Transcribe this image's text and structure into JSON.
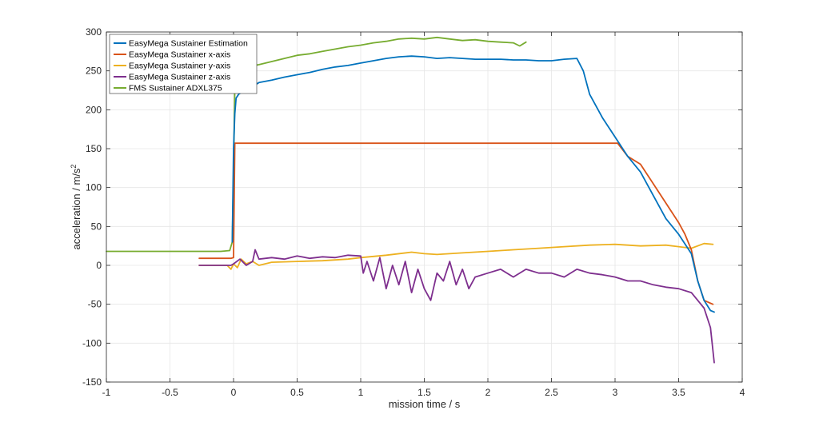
{
  "chart_data": {
    "type": "line",
    "xlabel": "mission time / s",
    "ylabel": "acceleration / m/s",
    "ylabel_sup": "2",
    "xlim": [
      -1,
      4
    ],
    "ylim": [
      -150,
      300
    ],
    "xticks": [
      "-1",
      "-0.5",
      "0",
      "0.5",
      "1",
      "1.5",
      "2",
      "2.5",
      "3",
      "3.5",
      "4"
    ],
    "yticks": [
      "300",
      "250",
      "200",
      "150",
      "100",
      "50",
      "0",
      "-50",
      "-100",
      "-150"
    ],
    "grid": true,
    "legend_position": "top-left",
    "series": [
      {
        "name": "EasyMega Sustainer Estimation",
        "color": "#0072BD",
        "x": [
          -0.01,
          0.0,
          0.01,
          0.02,
          0.04,
          0.06,
          0.1,
          0.15,
          0.2,
          0.3,
          0.4,
          0.5,
          0.6,
          0.7,
          0.8,
          0.9,
          1.0,
          1.1,
          1.2,
          1.3,
          1.4,
          1.5,
          1.6,
          1.7,
          1.8,
          1.9,
          2.0,
          2.1,
          2.2,
          2.3,
          2.4,
          2.5,
          2.6,
          2.7,
          2.75,
          2.8,
          2.9,
          3.0,
          3.1,
          3.2,
          3.3,
          3.4,
          3.5,
          3.6,
          3.65,
          3.7,
          3.75,
          3.78
        ],
        "y": [
          30,
          150,
          195,
          215,
          220,
          222,
          225,
          230,
          235,
          238,
          242,
          245,
          248,
          252,
          255,
          257,
          260,
          263,
          266,
          268,
          269,
          268,
          266,
          267,
          266,
          265,
          265,
          265,
          264,
          264,
          263,
          263,
          265,
          266,
          250,
          220,
          190,
          165,
          140,
          120,
          90,
          60,
          40,
          15,
          -20,
          -45,
          -58,
          -60
        ]
      },
      {
        "name": "EasyMega Sustainer x-axis",
        "color": "#D95319",
        "x": [
          -0.27,
          -0.02,
          0.0,
          0.01,
          0.5,
          1.0,
          1.5,
          2.0,
          2.5,
          3.0,
          3.02,
          3.1,
          3.2,
          3.3,
          3.4,
          3.5,
          3.55,
          3.6,
          3.65,
          3.7,
          3.77
        ],
        "y": [
          9,
          9,
          10,
          157,
          157,
          157,
          157,
          157,
          157,
          157,
          157,
          140,
          130,
          105,
          80,
          55,
          40,
          20,
          -20,
          -45,
          -50
        ]
      },
      {
        "name": "EasyMega Sustainer y-axis",
        "color": "#EDB120",
        "x": [
          -0.27,
          -0.05,
          -0.02,
          0.0,
          0.03,
          0.06,
          0.1,
          0.15,
          0.2,
          0.3,
          0.5,
          0.7,
          0.9,
          1.0,
          1.2,
          1.4,
          1.5,
          1.6,
          1.8,
          2.0,
          2.2,
          2.4,
          2.6,
          2.8,
          3.0,
          3.2,
          3.4,
          3.5,
          3.6,
          3.7,
          3.77
        ],
        "y": [
          0,
          0,
          -5,
          2,
          -3,
          8,
          2,
          5,
          0,
          4,
          5,
          6,
          8,
          10,
          13,
          17,
          15,
          14,
          16,
          18,
          20,
          22,
          24,
          26,
          27,
          25,
          26,
          24,
          22,
          28,
          27
        ]
      },
      {
        "name": "EasyMega Sustainer z-axis",
        "color": "#7E2F8E",
        "x": [
          -0.27,
          -0.02,
          0.0,
          0.05,
          0.1,
          0.15,
          0.17,
          0.2,
          0.3,
          0.4,
          0.5,
          0.6,
          0.7,
          0.8,
          0.9,
          1.0,
          1.02,
          1.05,
          1.1,
          1.15,
          1.2,
          1.25,
          1.3,
          1.35,
          1.4,
          1.45,
          1.5,
          1.55,
          1.6,
          1.65,
          1.7,
          1.75,
          1.8,
          1.85,
          1.9,
          2.0,
          2.1,
          2.2,
          2.3,
          2.4,
          2.5,
          2.6,
          2.7,
          2.8,
          2.9,
          3.0,
          3.1,
          3.2,
          3.3,
          3.4,
          3.5,
          3.6,
          3.65,
          3.7,
          3.75,
          3.78
        ],
        "y": [
          0,
          0,
          2,
          8,
          0,
          5,
          20,
          8,
          10,
          8,
          12,
          9,
          11,
          10,
          13,
          12,
          -10,
          5,
          -20,
          10,
          -30,
          0,
          -25,
          5,
          -35,
          -5,
          -30,
          -45,
          -10,
          -20,
          5,
          -25,
          -5,
          -30,
          -15,
          -10,
          -5,
          -15,
          -5,
          -10,
          -10,
          -15,
          -5,
          -10,
          -12,
          -15,
          -20,
          -20,
          -25,
          -28,
          -30,
          -35,
          -45,
          -55,
          -80,
          -125
        ]
      },
      {
        "name": "FMS Sustainer ADXL375",
        "color": "#77AC30",
        "x": [
          -1.0,
          -0.5,
          -0.1,
          -0.03,
          -0.01,
          0.0,
          0.01,
          0.02,
          0.05,
          0.1,
          0.2,
          0.3,
          0.4,
          0.5,
          0.6,
          0.7,
          0.8,
          0.9,
          1.0,
          1.1,
          1.2,
          1.3,
          1.4,
          1.5,
          1.6,
          1.7,
          1.8,
          1.9,
          2.0,
          2.1,
          2.2,
          2.25,
          2.3
        ],
        "y": [
          18,
          18,
          18,
          19,
          30,
          120,
          230,
          245,
          250,
          255,
          258,
          262,
          266,
          270,
          272,
          275,
          278,
          281,
          283,
          286,
          288,
          291,
          292,
          291,
          293,
          291,
          289,
          290,
          288,
          287,
          286,
          282,
          287
        ]
      }
    ]
  }
}
